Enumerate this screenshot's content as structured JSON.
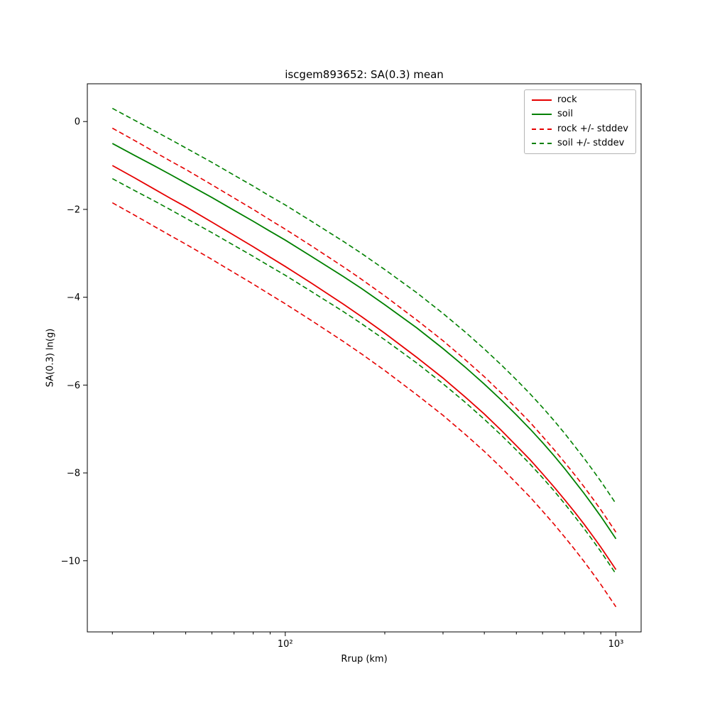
{
  "chart_data": {
    "type": "line",
    "title": "iscgem893652: SA(0.3) mean",
    "xlabel": "Rrup (km)",
    "ylabel": "SA(0.3) ln(g)",
    "xscale": "log",
    "grid": false,
    "legend_position": "upper right",
    "xlim": [
      25.2,
      1192
    ],
    "ylim": [
      -11.62,
      0.86
    ],
    "xticks": [
      {
        "value": 100,
        "label": "10²"
      },
      {
        "value": 1000,
        "label": "10³"
      }
    ],
    "yticks": [
      {
        "value": 0,
        "label": "0"
      },
      {
        "value": -2,
        "label": "−2"
      },
      {
        "value": -4,
        "label": "−4"
      },
      {
        "value": -6,
        "label": "−6"
      },
      {
        "value": -8,
        "label": "−8"
      },
      {
        "value": -10,
        "label": "−10"
      }
    ],
    "x": [
      30,
      35,
      40,
      45,
      50,
      60,
      70,
      80,
      90,
      100,
      120,
      150,
      170,
      200,
      250,
      300,
      350,
      400,
      450,
      500,
      550,
      600,
      650,
      700,
      750,
      800,
      850,
      900,
      950,
      1000
    ],
    "series": [
      {
        "name": "rock",
        "color": "#e60000",
        "stddev": 0.85,
        "values": [
          -1.0,
          -1.28,
          -1.53,
          -1.75,
          -1.94,
          -2.29,
          -2.59,
          -2.85,
          -3.09,
          -3.3,
          -3.68,
          -4.16,
          -4.44,
          -4.82,
          -5.37,
          -5.84,
          -6.27,
          -6.66,
          -7.03,
          -7.38,
          -7.7,
          -8.02,
          -8.32,
          -8.61,
          -8.89,
          -9.16,
          -9.43,
          -9.69,
          -9.95,
          -10.2
        ]
      },
      {
        "name": "soil",
        "color": "#008000",
        "stddev": 0.8,
        "values": [
          -0.5,
          -0.77,
          -1.0,
          -1.21,
          -1.4,
          -1.73,
          -2.02,
          -2.27,
          -2.5,
          -2.7,
          -3.07,
          -3.53,
          -3.8,
          -4.17,
          -4.7,
          -5.17,
          -5.59,
          -5.98,
          -6.34,
          -6.68,
          -7.0,
          -7.31,
          -7.61,
          -7.9,
          -8.19,
          -8.46,
          -8.73,
          -8.99,
          -9.25,
          -9.5
        ]
      }
    ],
    "legend": {
      "entries": [
        {
          "label": "rock",
          "color": "#e60000",
          "dash": false
        },
        {
          "label": "soil",
          "color": "#008000",
          "dash": false
        },
        {
          "label": "rock +/- stddev",
          "color": "#e60000",
          "dash": true
        },
        {
          "label": "soil +/- stddev",
          "color": "#008000",
          "dash": true
        }
      ]
    }
  }
}
